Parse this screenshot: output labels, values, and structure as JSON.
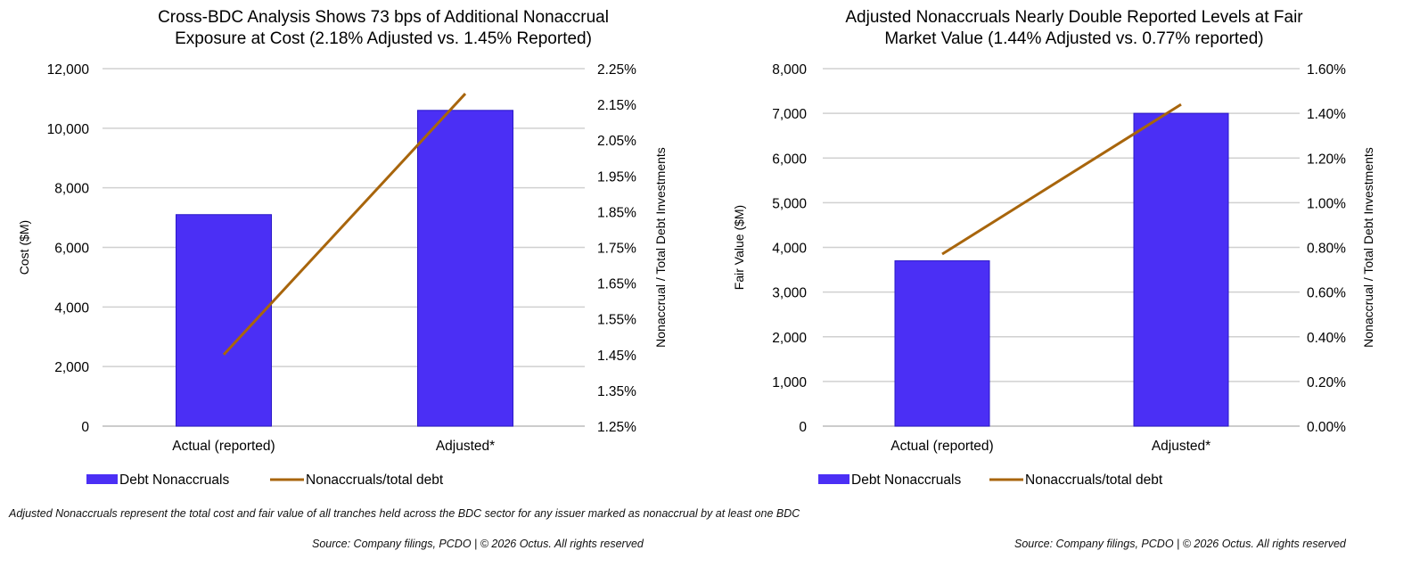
{
  "chart_data": [
    {
      "type": "bar+line",
      "title_lines": [
        "Cross-BDC Analysis Shows 73 bps of Additional Nonaccrual",
        "Exposure at Cost (2.18% Adjusted vs. 1.45% Reported)"
      ],
      "categories": [
        "Actual (reported)",
        "Adjusted*"
      ],
      "ylabel": "Cost ($M)",
      "y2label": "Nonaccrual / Total Debt Investments",
      "ylim": [
        0,
        12000
      ],
      "yticks": [
        0,
        2000,
        4000,
        6000,
        8000,
        10000,
        12000
      ],
      "ytick_labels": [
        "0",
        "2,000",
        "4,000",
        "6,000",
        "8,000",
        "10,000",
        "12,000"
      ],
      "y2lim": [
        1.25,
        2.25
      ],
      "y2ticks": [
        1.25,
        1.35,
        1.45,
        1.55,
        1.65,
        1.75,
        1.85,
        1.95,
        2.05,
        2.15,
        2.25
      ],
      "y2tick_labels": [
        "1.25%",
        "1.35%",
        "1.45%",
        "1.55%",
        "1.65%",
        "1.75%",
        "1.85%",
        "1.95%",
        "2.05%",
        "2.15%",
        "2.25%"
      ],
      "grid": true,
      "legend_placement": "bottom",
      "series": [
        {
          "name": "Debt Nonaccruals",
          "type": "bar",
          "axis": "left",
          "values": [
            7100,
            10600
          ],
          "color": "#4b2ff5"
        },
        {
          "name": "Nonaccruals/total debt",
          "type": "line",
          "axis": "right",
          "values": [
            1.45,
            2.18
          ],
          "color": "#a8650c"
        }
      ]
    },
    {
      "type": "bar+line",
      "title_lines": [
        "Adjusted Nonaccruals Nearly Double Reported Levels at Fair",
        "Market Value (1.44% Adjusted vs. 0.77% reported)"
      ],
      "categories": [
        "Actual (reported)",
        "Adjusted*"
      ],
      "ylabel": "Fair Value ($M)",
      "y2label": "Nonaccrual / Total Debt Investments",
      "ylim": [
        0,
        8000
      ],
      "yticks": [
        0,
        1000,
        2000,
        3000,
        4000,
        5000,
        6000,
        7000,
        8000
      ],
      "ytick_labels": [
        "0",
        "1,000",
        "2,000",
        "3,000",
        "4,000",
        "5,000",
        "6,000",
        "7,000",
        "8,000"
      ],
      "y2lim": [
        0,
        1.6
      ],
      "y2ticks": [
        0,
        0.2,
        0.4,
        0.6,
        0.8,
        1.0,
        1.2,
        1.4,
        1.6
      ],
      "y2tick_labels": [
        "0.00%",
        "0.20%",
        "0.40%",
        "0.60%",
        "0.80%",
        "1.00%",
        "1.20%",
        "1.40%",
        "1.60%"
      ],
      "grid": true,
      "legend_placement": "bottom",
      "series": [
        {
          "name": "Debt Nonaccruals",
          "type": "bar",
          "axis": "left",
          "values": [
            3700,
            7000
          ],
          "color": "#4b2ff5"
        },
        {
          "name": "Nonaccruals/total debt",
          "type": "line",
          "axis": "right",
          "values": [
            0.77,
            1.44
          ],
          "color": "#a8650c"
        }
      ]
    }
  ],
  "footnote": "Adjusted Nonaccruals represent the total cost and fair value of all tranches held across the BDC sector for any issuer marked as nonaccrual by at least one BDC",
  "source_left": "Source: Company filings, PCDO | © 2026 Octus. All rights reserved",
  "source_right": "Source: Company filings, PCDO | © 2026 Octus. All rights reserved"
}
